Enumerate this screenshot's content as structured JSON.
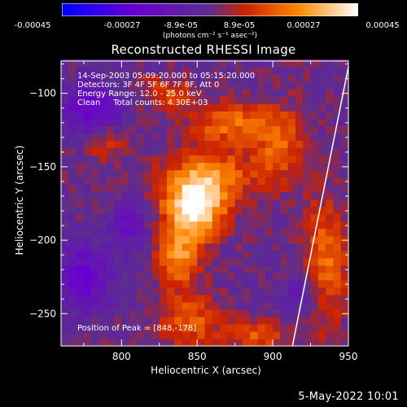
{
  "chart_data": {
    "type": "heatmap",
    "title": "Reconstructed RHESSI Image",
    "xlabel": "Heliocentric X (arcsec)",
    "ylabel": "Heliocentric Y (arcsec)",
    "xlim": [
      760,
      950
    ],
    "ylim": [
      -272,
      -78
    ],
    "xticks": [
      800,
      850,
      900,
      950
    ],
    "yticks": [
      -100,
      -150,
      -200,
      -250
    ],
    "colorbar": {
      "ticks": [
        "-0.00045",
        "-0.00027",
        "-8.9e-05",
        "8.9e-05",
        "0.00027",
        "0.00045"
      ],
      "unit": "(photons cm⁻² s⁻¹ asec⁻²)",
      "range": [
        -0.00045,
        0.00045
      ],
      "colors": [
        "#0000ff",
        "#6a00d0",
        "#5c2e8e",
        "#cc2200",
        "#ff8800",
        "#ffffff"
      ]
    },
    "annotations": [
      "14-Sep-2003 05:09:20.000 to 05:15:20.000",
      "Detectors: 3F 4F 5F 6F 7F 8F, Att 0",
      "Energy Range: 12.0 - 25.0 keV",
      "Clean     Total counts: 4.30E+03"
    ],
    "peak_label": "Position of Peak = [848,-178]",
    "peak": [
      848,
      -178
    ],
    "limb_line": [
      [
        913,
        -272
      ],
      [
        950,
        -82
      ]
    ],
    "sources": [
      {
        "x": 848,
        "y": -178,
        "amp": 1.0,
        "sx": 14,
        "sy": 14
      },
      {
        "x": 838,
        "y": -212,
        "amp": 0.6,
        "sx": 10,
        "sy": 14
      },
      {
        "x": 858,
        "y": -155,
        "amp": 0.55,
        "sx": 20,
        "sy": 12
      },
      {
        "x": 872,
        "y": -120,
        "amp": 0.5,
        "sx": 18,
        "sy": 10
      },
      {
        "x": 905,
        "y": -135,
        "amp": 0.45,
        "sx": 12,
        "sy": 18
      },
      {
        "x": 935,
        "y": -215,
        "amp": 0.5,
        "sx": 10,
        "sy": 30
      },
      {
        "x": 845,
        "y": -255,
        "amp": 0.45,
        "sx": 14,
        "sy": 12
      },
      {
        "x": 890,
        "y": -265,
        "amp": 0.4,
        "sx": 14,
        "sy": 8
      },
      {
        "x": 790,
        "y": -135,
        "amp": 0.3,
        "sx": 8,
        "sy": 8
      },
      {
        "x": 830,
        "y": -100,
        "amp": 0.35,
        "sx": 12,
        "sy": 8
      },
      {
        "x": 780,
        "y": -110,
        "amp": -0.45,
        "sx": 14,
        "sy": 12
      },
      {
        "x": 775,
        "y": -225,
        "amp": -0.5,
        "sx": 12,
        "sy": 14
      },
      {
        "x": 805,
        "y": -190,
        "amp": -0.3,
        "sx": 10,
        "sy": 12
      },
      {
        "x": 920,
        "y": -235,
        "amp": -0.25,
        "sx": 10,
        "sy": 10
      }
    ]
  },
  "footer": {
    "datetime": "5-May-2022 10:01"
  }
}
